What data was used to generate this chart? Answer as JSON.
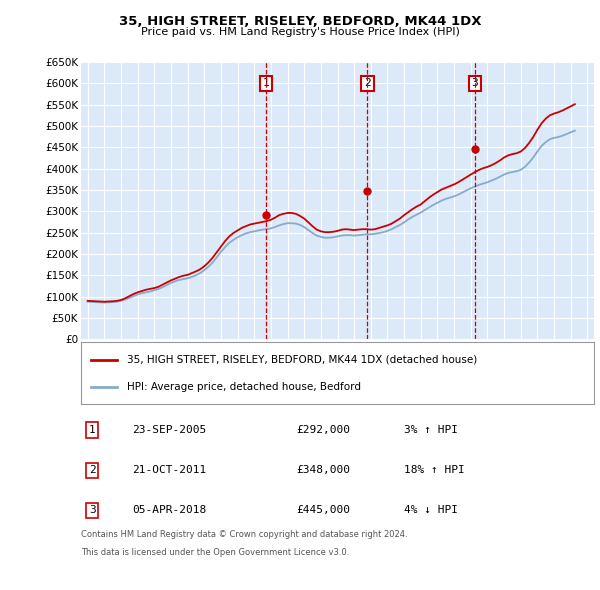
{
  "title": "35, HIGH STREET, RISELEY, BEDFORD, MK44 1DX",
  "subtitle": "Price paid vs. HM Land Registry's House Price Index (HPI)",
  "hpi_label": "HPI: Average price, detached house, Bedford",
  "price_label": "35, HIGH STREET, RISELEY, BEDFORD, MK44 1DX (detached house)",
  "footer_line1": "Contains HM Land Registry data © Crown copyright and database right 2024.",
  "footer_line2": "This data is licensed under the Open Government Licence v3.0.",
  "sales": [
    {
      "num": 1,
      "date": "23-SEP-2005",
      "price": "£292,000",
      "pct": "3% ↑ HPI"
    },
    {
      "num": 2,
      "date": "21-OCT-2011",
      "price": "£348,000",
      "pct": "18% ↑ HPI"
    },
    {
      "num": 3,
      "date": "05-APR-2018",
      "price": "£445,000",
      "pct": "4% ↓ HPI"
    }
  ],
  "sale_years": [
    2005.72,
    2011.8,
    2018.26
  ],
  "sale_prices": [
    292000,
    348000,
    445000
  ],
  "ylim": [
    0,
    650000
  ],
  "yticks": [
    0,
    50000,
    100000,
    150000,
    200000,
    250000,
    300000,
    350000,
    400000,
    450000,
    500000,
    550000,
    600000,
    650000
  ],
  "xlim_left": 1994.6,
  "xlim_right": 2025.4,
  "background_color": "#dce9f8",
  "red_color": "#cc0000",
  "blue_color": "#88aacc",
  "hpi_years": [
    1995.0,
    1995.25,
    1995.5,
    1995.75,
    1996.0,
    1996.25,
    1996.5,
    1996.75,
    1997.0,
    1997.25,
    1997.5,
    1997.75,
    1998.0,
    1998.25,
    1998.5,
    1998.75,
    1999.0,
    1999.25,
    1999.5,
    1999.75,
    2000.0,
    2000.25,
    2000.5,
    2000.75,
    2001.0,
    2001.25,
    2001.5,
    2001.75,
    2002.0,
    2002.25,
    2002.5,
    2002.75,
    2003.0,
    2003.25,
    2003.5,
    2003.75,
    2004.0,
    2004.25,
    2004.5,
    2004.75,
    2005.0,
    2005.25,
    2005.5,
    2005.75,
    2006.0,
    2006.25,
    2006.5,
    2006.75,
    2007.0,
    2007.25,
    2007.5,
    2007.75,
    2008.0,
    2008.25,
    2008.5,
    2008.75,
    2009.0,
    2009.25,
    2009.5,
    2009.75,
    2010.0,
    2010.25,
    2010.5,
    2010.75,
    2011.0,
    2011.25,
    2011.5,
    2011.75,
    2012.0,
    2012.25,
    2012.5,
    2012.75,
    2013.0,
    2013.25,
    2013.5,
    2013.75,
    2014.0,
    2014.25,
    2014.5,
    2014.75,
    2015.0,
    2015.25,
    2015.5,
    2015.75,
    2016.0,
    2016.25,
    2016.5,
    2016.75,
    2017.0,
    2017.25,
    2017.5,
    2017.75,
    2018.0,
    2018.25,
    2018.5,
    2018.75,
    2019.0,
    2019.25,
    2019.5,
    2019.75,
    2020.0,
    2020.25,
    2020.5,
    2020.75,
    2021.0,
    2021.25,
    2021.5,
    2021.75,
    2022.0,
    2022.25,
    2022.5,
    2022.75,
    2023.0,
    2023.25,
    2023.5,
    2023.75,
    2024.0,
    2024.25
  ],
  "hpi_values": [
    88000,
    87500,
    87000,
    86500,
    86000,
    86500,
    87000,
    88000,
    90000,
    93000,
    97000,
    101000,
    105000,
    108000,
    110000,
    112000,
    115000,
    118000,
    122000,
    127000,
    132000,
    136000,
    139000,
    141000,
    143000,
    146000,
    150000,
    155000,
    162000,
    170000,
    180000,
    192000,
    205000,
    216000,
    226000,
    233000,
    239000,
    244000,
    248000,
    251000,
    253000,
    255000,
    257000,
    258000,
    260000,
    263000,
    267000,
    270000,
    272000,
    272000,
    271000,
    268000,
    263000,
    256000,
    249000,
    243000,
    240000,
    238000,
    238000,
    239000,
    241000,
    243000,
    244000,
    244000,
    243000,
    244000,
    245000,
    246000,
    246000,
    247000,
    249000,
    251000,
    254000,
    258000,
    263000,
    268000,
    274000,
    281000,
    287000,
    292000,
    297000,
    303000,
    309000,
    315000,
    320000,
    325000,
    329000,
    332000,
    335000,
    339000,
    344000,
    349000,
    354000,
    358000,
    362000,
    365000,
    368000,
    372000,
    376000,
    381000,
    386000,
    390000,
    392000,
    394000,
    397000,
    404000,
    414000,
    426000,
    440000,
    453000,
    462000,
    469000,
    472000,
    474000,
    477000,
    481000,
    485000,
    489000
  ],
  "red_values": [
    90000,
    89500,
    89000,
    88500,
    88000,
    88500,
    89000,
    90000,
    92000,
    96000,
    101000,
    106000,
    110000,
    113000,
    116000,
    118000,
    120000,
    123000,
    128000,
    133000,
    138000,
    142000,
    146000,
    149000,
    151000,
    155000,
    159000,
    164000,
    171000,
    180000,
    191000,
    204000,
    217000,
    230000,
    241000,
    249000,
    255000,
    261000,
    265000,
    269000,
    271000,
    273000,
    275000,
    277000,
    280000,
    285000,
    291000,
    294000,
    296000,
    296000,
    294000,
    289000,
    283000,
    274000,
    265000,
    257000,
    253000,
    251000,
    251000,
    252000,
    254000,
    257000,
    258000,
    257000,
    256000,
    257000,
    258000,
    258000,
    257000,
    258000,
    261000,
    264000,
    267000,
    271000,
    277000,
    283000,
    291000,
    298000,
    305000,
    311000,
    316000,
    324000,
    332000,
    339000,
    345000,
    351000,
    355000,
    359000,
    363000,
    368000,
    374000,
    380000,
    386000,
    392000,
    397000,
    401000,
    404000,
    408000,
    413000,
    419000,
    426000,
    431000,
    434000,
    436000,
    440000,
    448000,
    460000,
    474000,
    491000,
    506000,
    517000,
    525000,
    529000,
    532000,
    536000,
    541000,
    546000,
    551000
  ]
}
